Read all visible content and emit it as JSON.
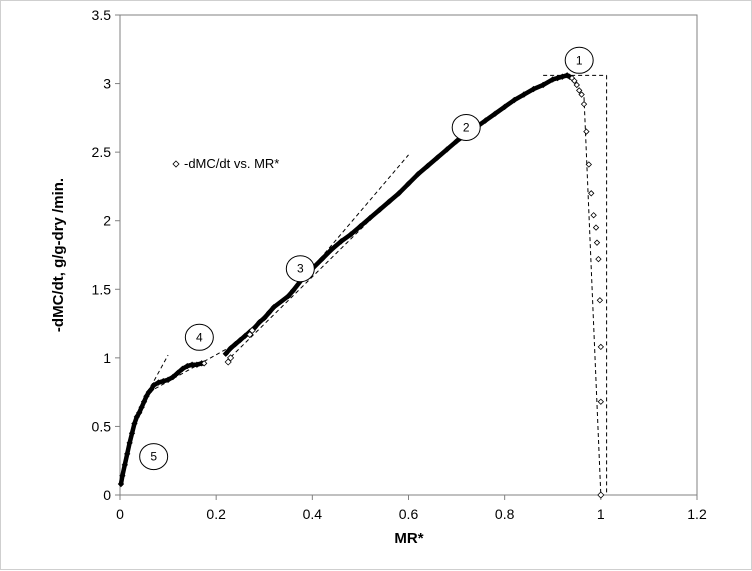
{
  "chart_data": {
    "type": "scatter",
    "title": "",
    "xlabel": "MR*",
    "ylabel": "-dMC/dt, g/g-dry /min.",
    "xlim": [
      0,
      1.2
    ],
    "ylim": [
      0,
      3.5
    ],
    "x_ticks": [
      "0",
      "0.2",
      "0.4",
      "0.6",
      "0.8",
      "1",
      "1.2"
    ],
    "y_ticks": [
      "0",
      "0.5",
      "1",
      "1.5",
      "2",
      "2.5",
      "3",
      "3.5"
    ],
    "grid": false,
    "legend": {
      "position": "top-left",
      "entries": [
        "-dMC/dt vs. MR*"
      ]
    },
    "series": [
      {
        "name": "-dMC/dt vs. MR*",
        "marker": "diamond",
        "x": [
          0.002,
          0.005,
          0.01,
          0.015,
          0.02,
          0.025,
          0.03,
          0.035,
          0.04,
          0.045,
          0.05,
          0.055,
          0.06,
          0.065,
          0.07,
          0.08,
          0.09,
          0.1,
          0.11,
          0.12,
          0.13,
          0.14,
          0.15,
          0.16,
          0.17,
          0.175,
          0.22,
          0.23,
          0.24,
          0.25,
          0.26,
          0.27,
          0.28,
          0.29,
          0.3,
          0.31,
          0.32,
          0.35,
          0.36,
          0.38,
          0.4,
          0.42,
          0.44,
          0.46,
          0.48,
          0.5,
          0.52,
          0.54,
          0.56,
          0.58,
          0.6,
          0.62,
          0.64,
          0.66,
          0.68,
          0.7,
          0.72,
          0.74,
          0.76,
          0.78,
          0.8,
          0.82,
          0.84,
          0.86,
          0.88,
          0.9,
          0.91,
          0.92,
          0.93,
          0.935,
          0.94,
          0.945,
          0.95,
          0.955,
          0.96,
          0.965,
          0.97,
          0.975,
          0.98,
          0.985,
          0.99,
          0.992,
          0.995,
          0.998,
          1.0,
          1.0
        ],
        "y": [
          0.08,
          0.14,
          0.22,
          0.3,
          0.38,
          0.45,
          0.52,
          0.57,
          0.6,
          0.64,
          0.68,
          0.72,
          0.75,
          0.77,
          0.8,
          0.82,
          0.83,
          0.84,
          0.86,
          0.89,
          0.92,
          0.94,
          0.95,
          0.95,
          0.96,
          0.96,
          1.03,
          1.07,
          1.1,
          1.13,
          1.16,
          1.19,
          1.22,
          1.26,
          1.29,
          1.33,
          1.37,
          1.45,
          1.49,
          1.58,
          1.65,
          1.72,
          1.79,
          1.85,
          1.9,
          1.96,
          2.02,
          2.08,
          2.14,
          2.2,
          2.27,
          2.34,
          2.4,
          2.46,
          2.52,
          2.58,
          2.63,
          2.68,
          2.73,
          2.78,
          2.83,
          2.88,
          2.92,
          2.96,
          2.99,
          3.03,
          3.04,
          3.05,
          3.06,
          3.05,
          3.04,
          3.02,
          2.99,
          2.95,
          2.92,
          2.85,
          2.65,
          2.41,
          2.2,
          2.04,
          1.95,
          1.84,
          1.72,
          1.42,
          1.08,
          0.68
        ],
        "color": "#000000"
      }
    ],
    "extra_points": {
      "x": [
        0.225,
        0.23,
        0.27,
        0.275,
        1.0
      ],
      "y": [
        0.97,
        1.0,
        1.17,
        1.2,
        0.0
      ]
    },
    "annotations": {
      "regions": [
        {
          "label": "1",
          "x": 0.955,
          "y": 3.17
        },
        {
          "label": "2",
          "x": 0.72,
          "y": 2.68
        },
        {
          "label": "3",
          "x": 0.375,
          "y": 1.65
        },
        {
          "label": "4",
          "x": 0.165,
          "y": 1.15
        },
        {
          "label": "5",
          "x": 0.07,
          "y": 0.28
        }
      ],
      "dashed_lines": [
        {
          "x": [
            0.05,
            0.1
          ],
          "y": [
            0.7,
            1.02
          ]
        },
        {
          "x": [
            0.06,
            0.25
          ],
          "y": [
            0.75,
            1.12
          ]
        },
        {
          "x": [
            0.22,
            0.62
          ],
          "y": [
            0.97,
            2.35
          ]
        },
        {
          "x": [
            0.35,
            0.6
          ],
          "y": [
            1.45,
            2.48
          ]
        },
        {
          "x": [
            0.88,
            1.012
          ],
          "y": [
            3.06,
            3.06
          ]
        },
        {
          "x": [
            1.012,
            1.012
          ],
          "y": [
            3.06,
            0.0
          ]
        },
        {
          "x": [
            0.965,
            1.0
          ],
          "y": [
            2.9,
            0.0
          ]
        }
      ]
    }
  }
}
